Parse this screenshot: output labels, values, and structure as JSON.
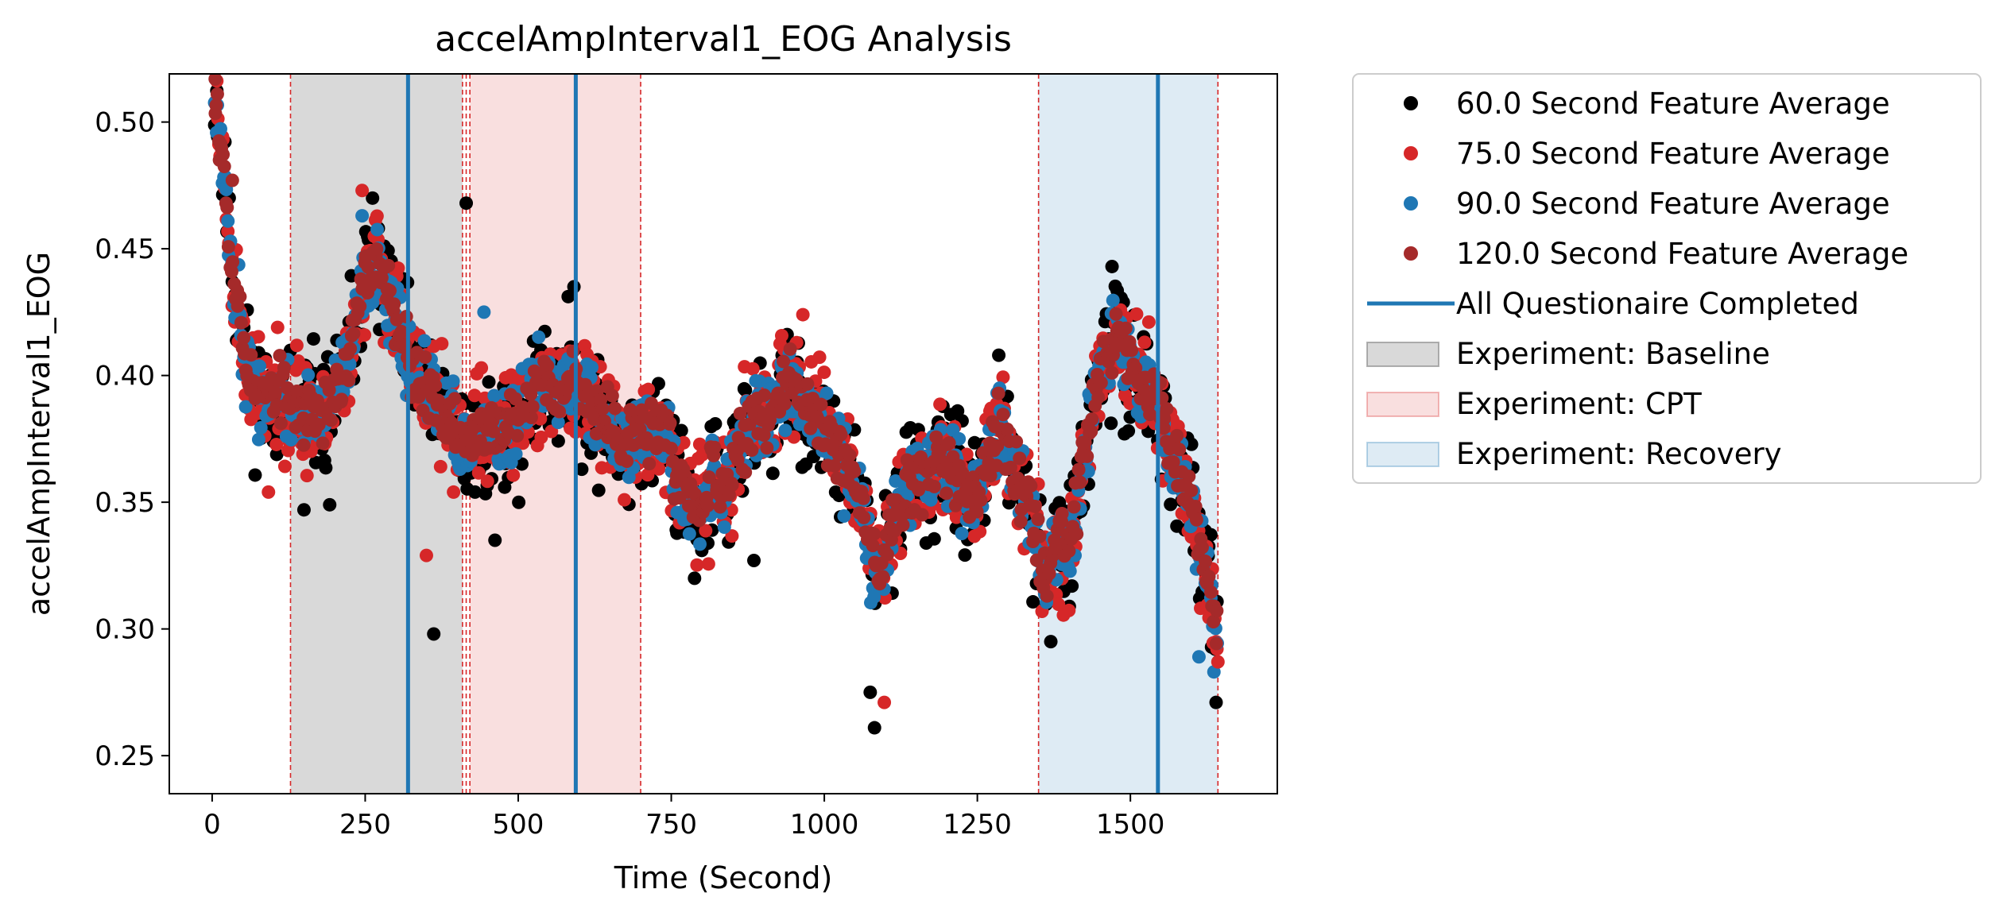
{
  "chart_data": {
    "type": "scatter",
    "title": "accelAmpInterval1_EOG Analysis",
    "xlabel": "Time (Second)",
    "ylabel": "accelAmpInterval1_EOG",
    "xlim": [
      -70,
      1740
    ],
    "ylim": [
      0.235,
      0.519
    ],
    "xticks": [
      0,
      250,
      500,
      750,
      1000,
      1250,
      1500
    ],
    "xtick_labels": [
      "0",
      "250",
      "500",
      "750",
      "1000",
      "1250",
      "1500"
    ],
    "yticks": [
      0.25,
      0.3,
      0.35,
      0.4,
      0.45,
      0.5
    ],
    "ytick_labels": [
      "0.25",
      "0.30",
      "0.35",
      "0.40",
      "0.45",
      "0.50"
    ],
    "grid": false,
    "legend_position": "outside-right",
    "colors": {
      "s60": "#000000",
      "s75": "#d62728",
      "s90": "#1f77b4",
      "s120": "#a52a2a",
      "questionnaire": "#1f77b4",
      "baseline": "#808080",
      "cpt": "#d62728",
      "recovery": "#1f77b4",
      "boundary": "#d62728"
    },
    "vertical_lines": {
      "name": "All Questionaire Completed",
      "x": [
        320,
        594,
        1545
      ]
    },
    "regions": [
      {
        "name": "Experiment: Baseline",
        "x0": 128,
        "x1": 409
      },
      {
        "name": "Experiment: CPT",
        "x0": 421,
        "x1": 700
      },
      {
        "name": "Experiment: Recovery",
        "x0": 1350,
        "x1": 1643
      }
    ],
    "boundary_lines": [
      128,
      409,
      415,
      421,
      700,
      1350,
      1643
    ],
    "profile_points": [
      [
        5,
        0.515
      ],
      [
        20,
        0.48
      ],
      [
        35,
        0.44
      ],
      [
        55,
        0.405
      ],
      [
        75,
        0.392
      ],
      [
        110,
        0.392
      ],
      [
        150,
        0.383
      ],
      [
        175,
        0.385
      ],
      [
        210,
        0.394
      ],
      [
        235,
        0.418
      ],
      [
        250,
        0.44
      ],
      [
        270,
        0.445
      ],
      [
        295,
        0.43
      ],
      [
        320,
        0.405
      ],
      [
        340,
        0.396
      ],
      [
        365,
        0.39
      ],
      [
        390,
        0.378
      ],
      [
        420,
        0.372
      ],
      [
        440,
        0.378
      ],
      [
        470,
        0.375
      ],
      [
        500,
        0.382
      ],
      [
        520,
        0.392
      ],
      [
        545,
        0.4
      ],
      [
        565,
        0.395
      ],
      [
        590,
        0.4
      ],
      [
        610,
        0.392
      ],
      [
        630,
        0.383
      ],
      [
        650,
        0.378
      ],
      [
        670,
        0.374
      ],
      [
        690,
        0.375
      ],
      [
        720,
        0.378
      ],
      [
        745,
        0.376
      ],
      [
        760,
        0.358
      ],
      [
        780,
        0.352
      ],
      [
        800,
        0.347
      ],
      [
        820,
        0.36
      ],
      [
        840,
        0.352
      ],
      [
        855,
        0.366
      ],
      [
        870,
        0.375
      ],
      [
        885,
        0.385
      ],
      [
        905,
        0.38
      ],
      [
        930,
        0.392
      ],
      [
        950,
        0.396
      ],
      [
        970,
        0.388
      ],
      [
        990,
        0.38
      ],
      [
        1010,
        0.375
      ],
      [
        1030,
        0.365
      ],
      [
        1045,
        0.362
      ],
      [
        1060,
        0.348
      ],
      [
        1075,
        0.33
      ],
      [
        1090,
        0.322
      ],
      [
        1105,
        0.338
      ],
      [
        1120,
        0.35
      ],
      [
        1145,
        0.36
      ],
      [
        1165,
        0.36
      ],
      [
        1190,
        0.366
      ],
      [
        1210,
        0.363
      ],
      [
        1235,
        0.35
      ],
      [
        1255,
        0.358
      ],
      [
        1270,
        0.372
      ],
      [
        1285,
        0.38
      ],
      [
        1300,
        0.37
      ],
      [
        1315,
        0.36
      ],
      [
        1335,
        0.35
      ],
      [
        1350,
        0.33
      ],
      [
        1360,
        0.32
      ],
      [
        1380,
        0.335
      ],
      [
        1400,
        0.33
      ],
      [
        1420,
        0.36
      ],
      [
        1440,
        0.39
      ],
      [
        1460,
        0.41
      ],
      [
        1480,
        0.416
      ],
      [
        1500,
        0.405
      ],
      [
        1520,
        0.398
      ],
      [
        1545,
        0.39
      ],
      [
        1565,
        0.37
      ],
      [
        1585,
        0.36
      ],
      [
        1605,
        0.345
      ],
      [
        1625,
        0.32
      ],
      [
        1640,
        0.3
      ]
    ],
    "series": [
      {
        "name": "60.0 Second Feature Average",
        "color": "#000000",
        "jitter": 0.012,
        "offset": -0.001,
        "seed": 11
      },
      {
        "name": "75.0 Second Feature Average",
        "color": "#d62728",
        "jitter": 0.011,
        "offset": 0.0,
        "seed": 23
      },
      {
        "name": "90.0 Second Feature Average",
        "color": "#1f77b4",
        "jitter": 0.008,
        "offset": 0.0,
        "seed": 37
      },
      {
        "name": "120.0 Second Feature Average",
        "color": "#a52a2a",
        "jitter": 0.006,
        "offset": 0.001,
        "seed": 53
      }
    ],
    "outliers": [
      {
        "series": 0,
        "x": 1082,
        "y": 0.261
      },
      {
        "series": 0,
        "x": 1075,
        "y": 0.275
      },
      {
        "series": 0,
        "x": 1640,
        "y": 0.271
      },
      {
        "series": 0,
        "x": 362,
        "y": 0.298
      },
      {
        "series": 0,
        "x": 192,
        "y": 0.349
      },
      {
        "series": 0,
        "x": 150,
        "y": 0.347
      },
      {
        "series": 0,
        "x": 415,
        "y": 0.468
      },
      {
        "series": 0,
        "x": 462,
        "y": 0.335
      },
      {
        "series": 0,
        "x": 885,
        "y": 0.327
      },
      {
        "series": 0,
        "x": 788,
        "y": 0.32
      },
      {
        "series": 0,
        "x": 1470,
        "y": 0.443
      },
      {
        "series": 0,
        "x": 1370,
        "y": 0.295
      },
      {
        "series": 0,
        "x": 1285,
        "y": 0.408
      },
      {
        "series": 0,
        "x": 591,
        "y": 0.435
      },
      {
        "series": 0,
        "x": 262,
        "y": 0.47
      },
      {
        "series": 1,
        "x": 350,
        "y": 0.329
      },
      {
        "series": 1,
        "x": 1098,
        "y": 0.271
      },
      {
        "series": 1,
        "x": 1643,
        "y": 0.287
      },
      {
        "series": 1,
        "x": 965,
        "y": 0.424
      },
      {
        "series": 1,
        "x": 245,
        "y": 0.473
      },
      {
        "series": 1,
        "x": 92,
        "y": 0.354
      },
      {
        "series": 2,
        "x": 444,
        "y": 0.425
      },
      {
        "series": 2,
        "x": 245,
        "y": 0.463
      },
      {
        "series": 2,
        "x": 1612,
        "y": 0.289
      },
      {
        "series": 3,
        "x": 5,
        "y": 0.517
      },
      {
        "series": 3,
        "x": 12,
        "y": 0.485
      },
      {
        "series": 3,
        "x": 33,
        "y": 0.477
      }
    ]
  },
  "legend": {
    "items": [
      {
        "label": "60.0 Second Feature Average",
        "kind": "dot",
        "color": "#000000"
      },
      {
        "label": "75.0 Second Feature Average",
        "kind": "dot",
        "color": "#d62728"
      },
      {
        "label": "90.0 Second Feature Average",
        "kind": "dot",
        "color": "#1f77b4"
      },
      {
        "label": "120.0 Second Feature Average",
        "kind": "dot",
        "color": "#a52a2a"
      },
      {
        "label": "All Questionaire Completed",
        "kind": "line",
        "color": "#1f77b4"
      },
      {
        "label": "Experiment: Baseline",
        "kind": "patch",
        "color": "#808080"
      },
      {
        "label": "Experiment: CPT",
        "kind": "patch",
        "color": "#d62728"
      },
      {
        "label": "Experiment: Recovery",
        "kind": "patch",
        "color": "#1f77b4"
      }
    ]
  }
}
